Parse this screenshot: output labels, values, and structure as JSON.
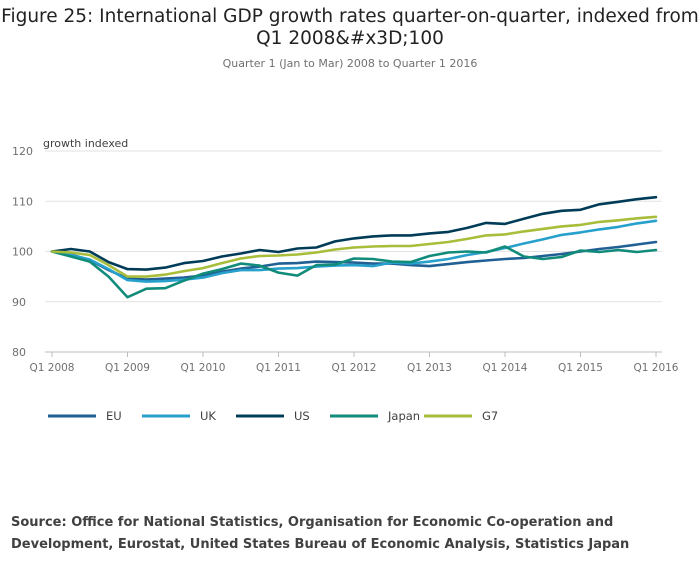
{
  "title": "Figure 25: International GDP growth rates quarter-on-quarter, indexed from Q1 2008&#x3D;100",
  "subtitle": "Quarter 1 (Jan to Mar) 2008 to Quarter 1 2016",
  "source": "Source: Office for National Statistics, Organisation for Economic Co-operation and Development, Eurostat, United States Bureau of Economic Analysis, Statistics Japan",
  "chart_data": {
    "type": "line",
    "ylabel": "growth indexed",
    "ylim": [
      80,
      120
    ],
    "yticks": [
      80,
      90,
      100,
      110,
      120
    ],
    "x_start_label": "Q1 2008",
    "xtick_labels": [
      "Q1 2008",
      "Q1 2009",
      "Q1 2010",
      "Q1 2011",
      "Q1 2012",
      "Q1 2013",
      "Q1 2014",
      "Q1 2015",
      "Q1 2016"
    ],
    "categories": [
      "Q1 2008",
      "Q2 2008",
      "Q3 2008",
      "Q4 2008",
      "Q1 2009",
      "Q2 2009",
      "Q3 2009",
      "Q4 2009",
      "Q1 2010",
      "Q2 2010",
      "Q3 2010",
      "Q4 2010",
      "Q1 2011",
      "Q2 2011",
      "Q3 2011",
      "Q4 2011",
      "Q1 2012",
      "Q2 2012",
      "Q3 2012",
      "Q4 2012",
      "Q1 2013",
      "Q2 2013",
      "Q3 2013",
      "Q4 2013",
      "Q1 2014",
      "Q2 2014",
      "Q3 2014",
      "Q4 2014",
      "Q1 2015",
      "Q2 2015",
      "Q3 2015",
      "Q4 2015",
      "Q1 2016"
    ],
    "grid": true,
    "legend": "bottom",
    "series": [
      {
        "name": "EU",
        "color": "#206095",
        "values": [
          100,
          99.4,
          98.3,
          96.3,
          94.6,
          94.4,
          94.6,
          94.8,
          95.2,
          96.0,
          96.6,
          97.0,
          97.6,
          97.7,
          98.0,
          97.9,
          97.8,
          97.6,
          97.6,
          97.3,
          97.1,
          97.5,
          97.9,
          98.2,
          98.5,
          98.7,
          99.1,
          99.5,
          100.0,
          100.5,
          100.9,
          101.4,
          101.9
        ]
      },
      {
        "name": "UK",
        "color": "#27A0CC",
        "values": [
          100,
          99.3,
          98.4,
          96.5,
          94.3,
          94.0,
          94.1,
          94.4,
          94.8,
          95.7,
          96.3,
          96.3,
          96.6,
          96.7,
          97.0,
          97.2,
          97.3,
          97.1,
          97.8,
          97.6,
          98.0,
          98.5,
          99.3,
          99.9,
          100.7,
          101.6,
          102.4,
          103.3,
          103.8,
          104.4,
          104.9,
          105.6,
          106.1
        ]
      },
      {
        "name": "US",
        "color": "#003C57",
        "values": [
          100,
          100.5,
          100.0,
          97.9,
          96.5,
          96.4,
          96.8,
          97.7,
          98.1,
          99.0,
          99.6,
          100.3,
          99.9,
          100.6,
          100.8,
          102.0,
          102.6,
          103.0,
          103.2,
          103.2,
          103.6,
          103.9,
          104.7,
          105.7,
          105.5,
          106.5,
          107.5,
          108.1,
          108.3,
          109.4,
          109.9,
          110.4,
          110.8
        ]
      },
      {
        "name": "Japan",
        "color": "#118C7B",
        "values": [
          100,
          99.0,
          98.0,
          95.0,
          90.9,
          92.6,
          92.7,
          94.2,
          95.6,
          96.5,
          97.6,
          97.2,
          95.8,
          95.2,
          97.3,
          97.4,
          98.6,
          98.5,
          98.0,
          97.9,
          99.1,
          99.8,
          100.0,
          99.8,
          101.0,
          99.0,
          98.5,
          98.9,
          100.2,
          99.9,
          100.3,
          99.9,
          100.3
        ]
      },
      {
        "name": "G7",
        "color": "#A8BD3A",
        "values": [
          100,
          99.8,
          99.3,
          97.3,
          95.0,
          95.0,
          95.4,
          96.1,
          96.7,
          97.7,
          98.6,
          99.1,
          99.2,
          99.4,
          99.8,
          100.4,
          100.8,
          101.0,
          101.1,
          101.1,
          101.5,
          101.9,
          102.5,
          103.2,
          103.4,
          104.0,
          104.5,
          105.0,
          105.3,
          105.9,
          106.2,
          106.6,
          106.9
        ]
      }
    ]
  }
}
